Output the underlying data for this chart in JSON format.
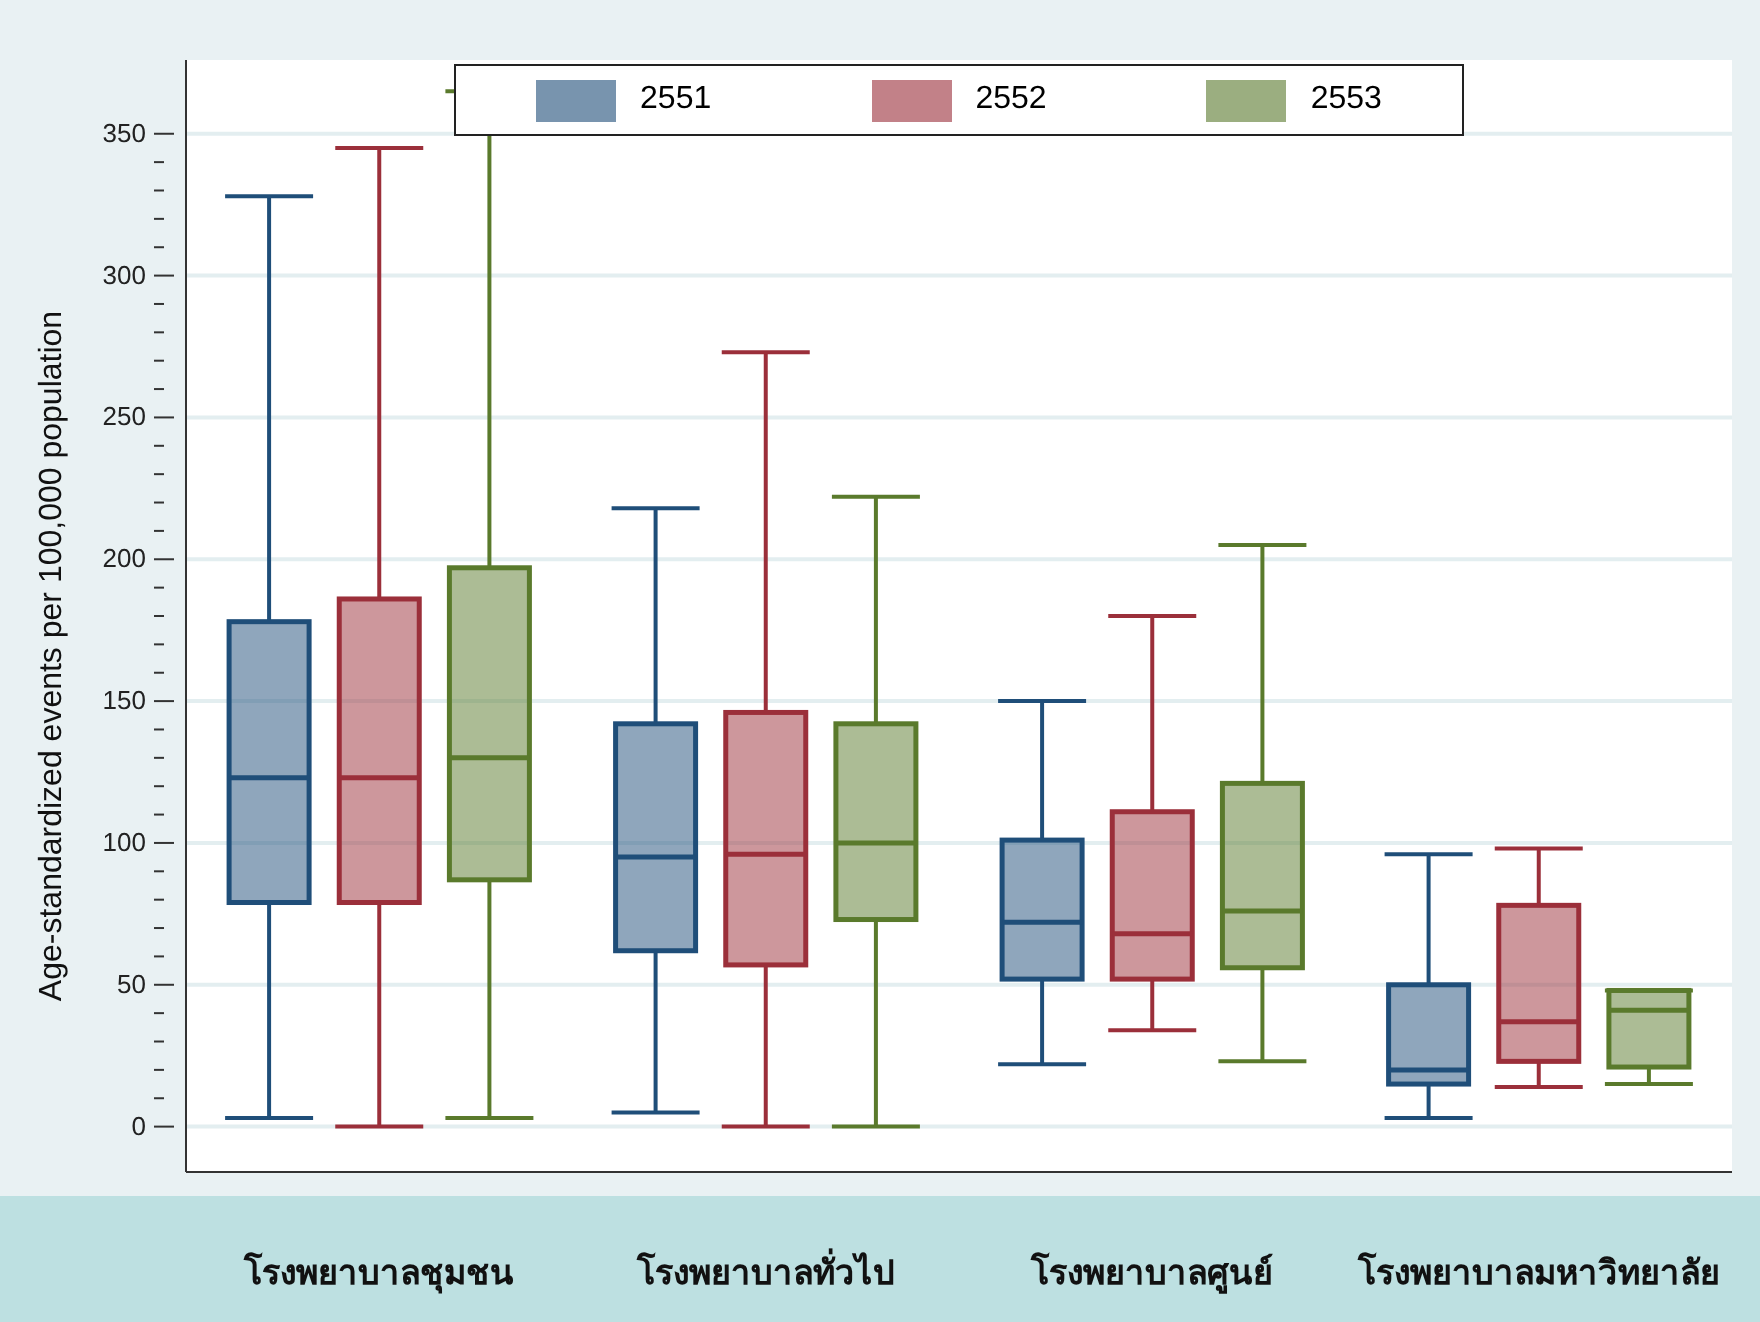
{
  "chart_data": {
    "type": "box",
    "categories": [
      "โรงพยาบาลชุมชน",
      "โรงพยาบาลทั่วไป",
      "โรงพยาบาลศูนย์",
      "โรงพยาบาลมหาวิทยาลัย"
    ],
    "ylabel": "Age-standardized events per 100,000 population",
    "ylim": [
      -16,
      376
    ],
    "yticks": [
      0,
      {
        "value": 10,
        "label": null
      },
      {
        "value": 20,
        "label": null
      },
      {
        "value": 30,
        "label": null
      },
      {
        "value": 40,
        "label": null
      },
      50,
      {
        "value": 60,
        "label": null
      },
      {
        "value": 70,
        "label": null
      },
      {
        "value": 80,
        "label": null
      },
      {
        "value": 90,
        "label": null
      },
      100,
      {
        "value": 110,
        "label": null
      },
      {
        "value": 120,
        "label": null
      },
      {
        "value": 130,
        "label": null
      },
      {
        "value": 140,
        "label": null
      },
      150,
      {
        "value": 160,
        "label": null
      },
      {
        "value": 170,
        "label": null
      },
      {
        "value": 180,
        "label": null
      },
      {
        "value": 190,
        "label": null
      },
      200,
      {
        "value": 210,
        "label": null
      },
      {
        "value": 220,
        "label": null
      },
      {
        "value": 230,
        "label": null
      },
      {
        "value": 240,
        "label": null
      },
      250,
      {
        "value": 260,
        "label": null
      },
      {
        "value": 270,
        "label": null
      },
      {
        "value": 280,
        "label": null
      },
      {
        "value": 290,
        "label": null
      },
      300,
      {
        "value": 310,
        "label": null
      },
      {
        "value": 320,
        "label": null
      },
      {
        "value": 330,
        "label": null
      },
      {
        "value": 340,
        "label": null
      },
      350
    ],
    "grid": "y",
    "legend": "top",
    "series": [
      {
        "name": "2551",
        "color": "#1f4e79",
        "boxes": [
          {
            "low": 3,
            "q1": 79,
            "median": 123,
            "q3": 178,
            "high": 328
          },
          {
            "low": 5,
            "q1": 62,
            "median": 95,
            "q3": 142,
            "high": 218
          },
          {
            "low": 22,
            "q1": 52,
            "median": 72,
            "q3": 101,
            "high": 150
          },
          {
            "low": 3,
            "q1": 15,
            "median": 20,
            "q3": 50,
            "high": 96
          }
        ]
      },
      {
        "name": "2552",
        "color": "#9b2f3a",
        "boxes": [
          {
            "low": 0,
            "q1": 79,
            "median": 123,
            "q3": 186,
            "high": 345
          },
          {
            "low": 0,
            "q1": 57,
            "median": 96,
            "q3": 146,
            "high": 273
          },
          {
            "low": 34,
            "q1": 52,
            "median": 68,
            "q3": 111,
            "high": 180
          },
          {
            "low": 14,
            "q1": 23,
            "median": 37,
            "q3": 78,
            "high": 98
          }
        ]
      },
      {
        "name": "2553",
        "color": "#5a7a2c",
        "boxes": [
          {
            "low": 3,
            "q1": 87,
            "median": 130,
            "q3": 197,
            "high": 365
          },
          {
            "low": 0,
            "q1": 73,
            "median": 100,
            "q3": 142,
            "high": 222
          },
          {
            "low": 23,
            "q1": 56,
            "median": 76,
            "q3": 121,
            "high": 205
          },
          {
            "low": 15,
            "q1": 21,
            "median": 41,
            "q3": 48,
            "high": 48
          }
        ]
      }
    ]
  }
}
